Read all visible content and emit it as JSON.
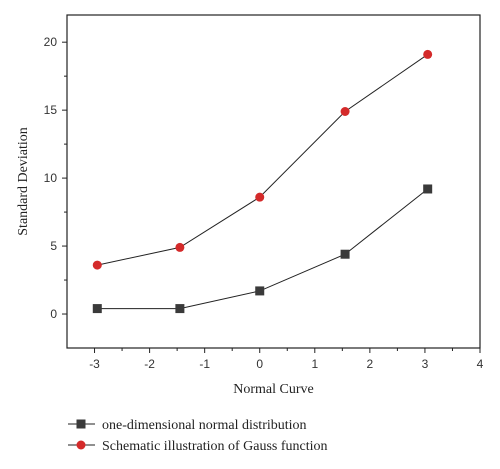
{
  "chart_data": {
    "type": "line",
    "xlabel": "Normal Curve",
    "ylabel": "Standard Deviation",
    "xlim": [
      -3.5,
      4
    ],
    "ylim": [
      -2.5,
      22
    ],
    "x_ticks": [
      -3,
      -2,
      -1,
      0,
      1,
      2,
      3,
      4
    ],
    "y_ticks": [
      0,
      5,
      10,
      15,
      20
    ],
    "x_tick_labels": [
      "-3",
      "-2",
      "-1",
      "0",
      "1",
      "2",
      "3",
      "4"
    ],
    "y_tick_labels": [
      "0",
      "5",
      "10",
      "15",
      "20"
    ],
    "grid": false,
    "legend_position": "bottom",
    "series": [
      {
        "name": "one-dimensional normal distribution",
        "marker": "square",
        "color": "#3a3a3a",
        "x": [
          -2.95,
          -1.45,
          0.0,
          1.55,
          3.05
        ],
        "y": [
          0.4,
          0.4,
          1.7,
          4.4,
          9.2
        ]
      },
      {
        "name": "Schematic illustration of Gauss function",
        "marker": "circle",
        "color": "#d42a2a",
        "x": [
          -2.95,
          -1.45,
          0.0,
          1.55,
          3.05
        ],
        "y": [
          3.6,
          4.9,
          8.6,
          14.9,
          19.1
        ]
      }
    ]
  }
}
